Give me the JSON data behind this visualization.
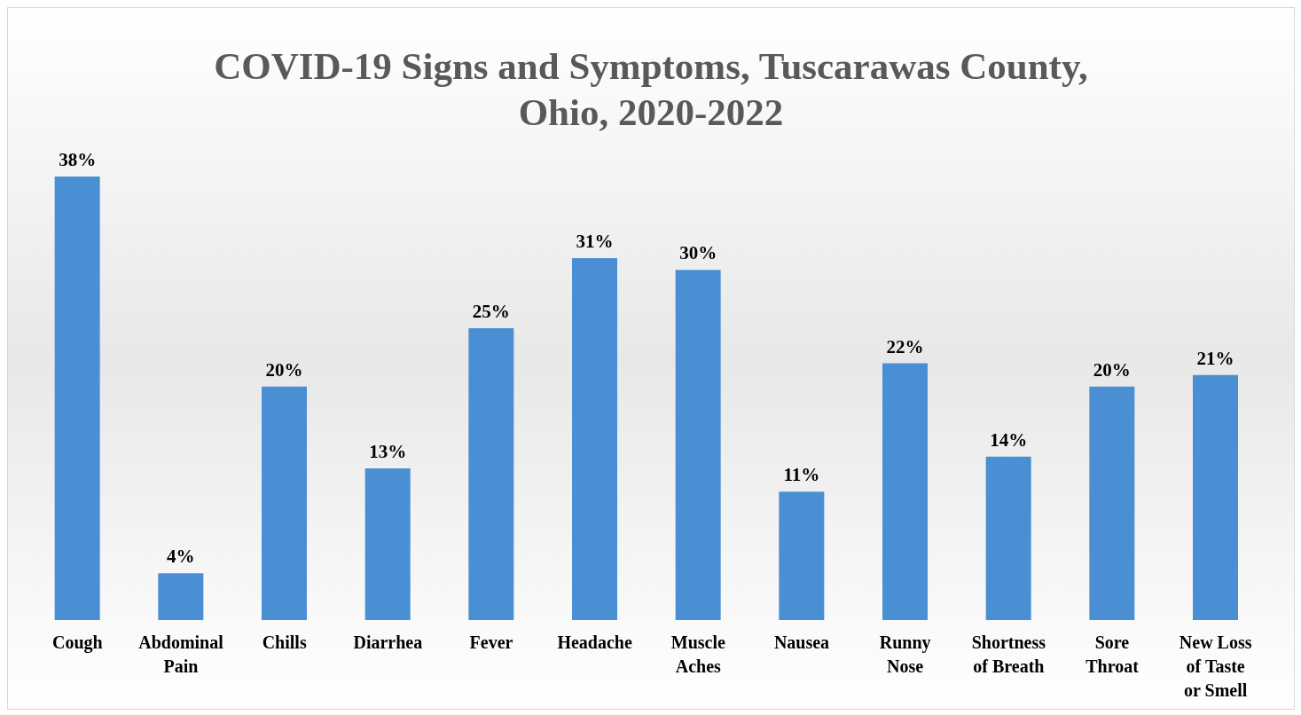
{
  "chart_data": {
    "type": "bar",
    "title": "COVID-19 Signs and Symptoms, Tuscarawas County, Ohio, 2020-2022",
    "categories": [
      "Cough",
      "Abdominal Pain",
      "Chills",
      "Diarrhea",
      "Fever",
      "Headache",
      "Muscle Aches",
      "Nausea",
      "Runny Nose",
      "Shortness of Breath",
      "Sore Throat",
      "New Loss of Taste or Smell"
    ],
    "values": [
      38,
      4,
      20,
      13,
      25,
      31,
      30,
      11,
      22,
      14,
      20,
      21
    ],
    "value_labels": [
      "38%",
      "4%",
      "20%",
      "13%",
      "25%",
      "31%",
      "30%",
      "11%",
      "22%",
      "14%",
      "20%",
      "21%"
    ],
    "color": "#4a8fd4",
    "grid": false,
    "legend": false
  }
}
